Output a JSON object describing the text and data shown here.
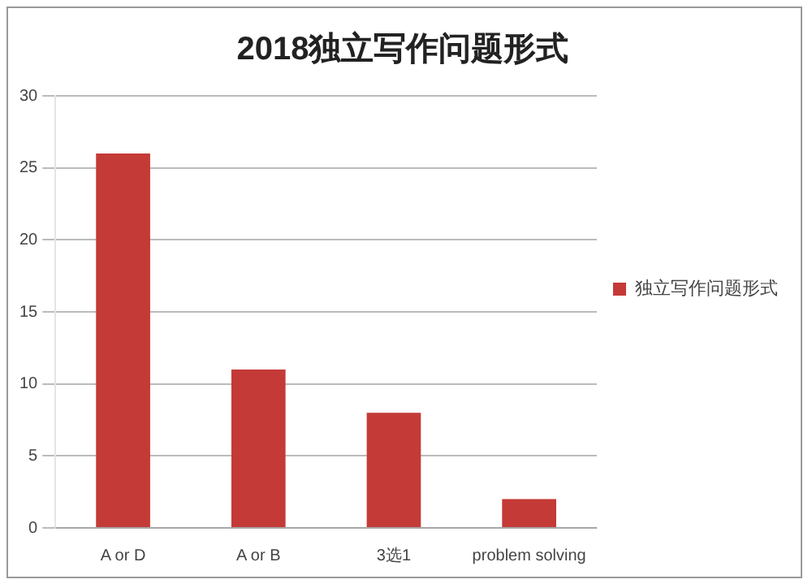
{
  "chart_data": {
    "type": "bar",
    "title": "2018独立写作问题形式",
    "categories": [
      "A or D",
      "A or B",
      "3选1",
      "problem solving"
    ],
    "series": [
      {
        "name": "独立写作问题形式",
        "color": "#c43a37",
        "values": [
          26,
          11,
          8,
          2
        ]
      }
    ],
    "ylim": [
      0,
      30
    ],
    "yticks": [
      0,
      5,
      10,
      15,
      20,
      25,
      30
    ],
    "grid": "y",
    "legend": "right"
  }
}
